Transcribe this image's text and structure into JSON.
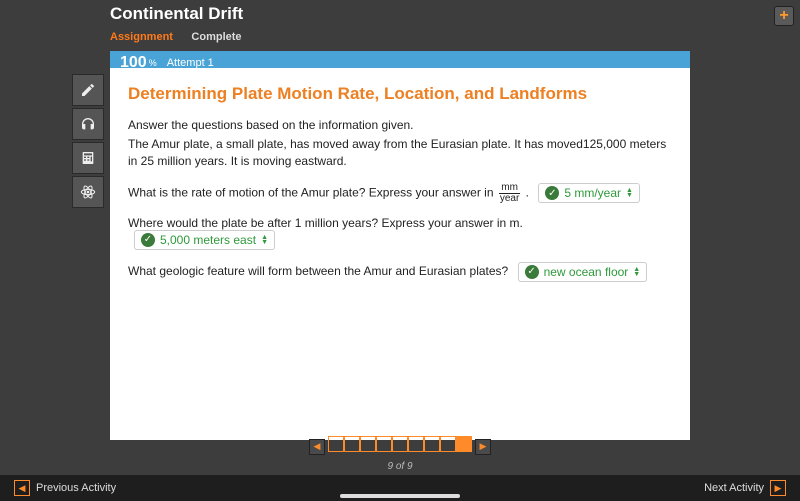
{
  "header": {
    "title": "Continental Drift",
    "assignment_label": "Assignment",
    "status": "Complete"
  },
  "score": {
    "percent": "100",
    "percent_suffix": "%",
    "attempt": "Attempt 1"
  },
  "colors": {
    "accent_orange": "#ed8022",
    "score_blue": "#4aa3d6",
    "answer_green": "#2e9a3a",
    "nav_orange": "#ff8a2a",
    "bg": "#3d3d3d"
  },
  "content": {
    "title": "Determining Plate Motion Rate, Location, and Landforms",
    "intro": "Answer the questions based on the information given.",
    "paragraph": "The Amur plate, a small plate, has moved away from the Eurasian plate. It has moved125,000 meters in 25 million years. It is moving eastward.",
    "q1_pre": "What is the rate of motion of the Amur plate? Express your answer in ",
    "q1_frac_top": "mm",
    "q1_frac_bot": "year",
    "q1_post": ".",
    "q1_answer": "5 mm/year",
    "q2": "Where would the plate be after 1 million years? Express your answer in m.",
    "q2_answer": "5,000 meters east",
    "q3": "What geologic feature will form between the Amur and Eurasian plates?",
    "q3_answer": "new ocean floor"
  },
  "pager": {
    "total": 9,
    "active": 9,
    "label": "9 of 9"
  },
  "footer": {
    "prev": "Previous Activity",
    "next": "Next Activity"
  },
  "tools": [
    "pencil",
    "headphones",
    "calculator",
    "atom"
  ]
}
